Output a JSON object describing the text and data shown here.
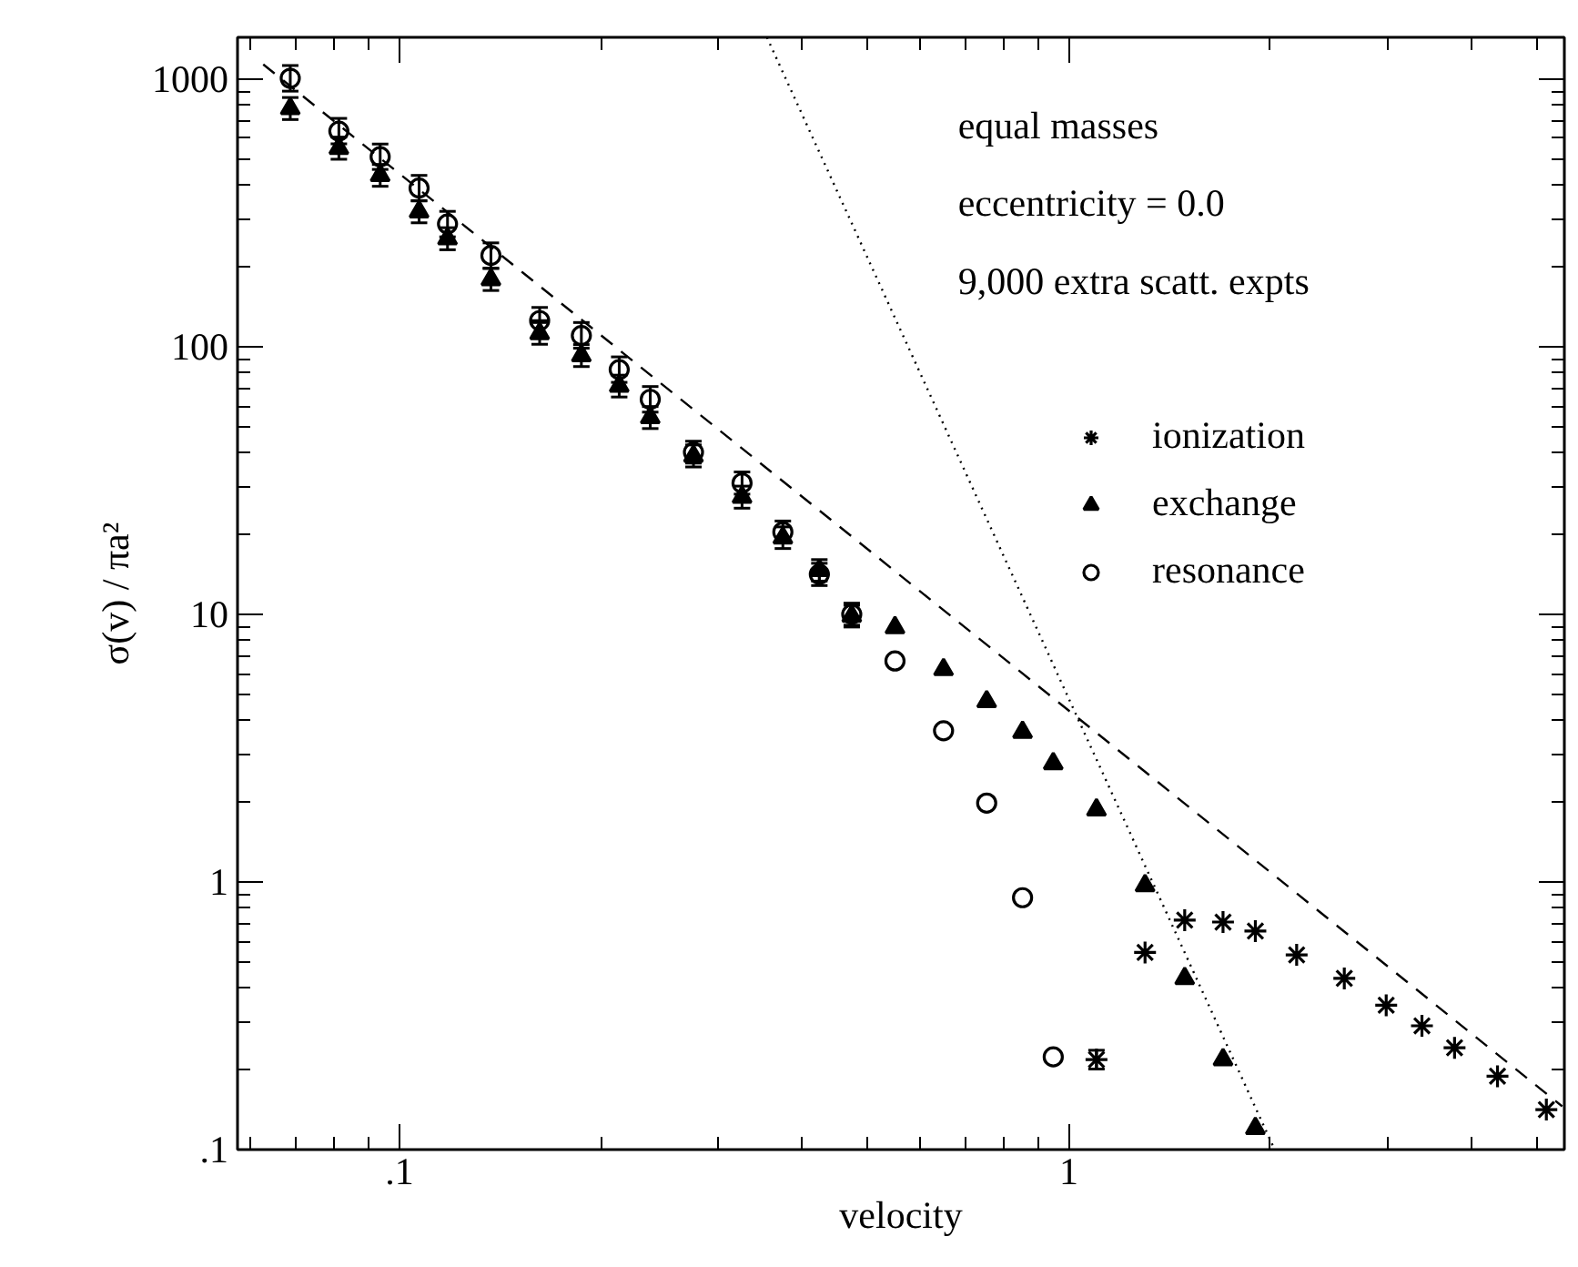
{
  "chart_data": {
    "type": "scatter",
    "xlabel": "velocity",
    "ylabel": "σ(v) / πa²",
    "log": "xy",
    "grid": false,
    "legend": "top right",
    "xlim": [
      0.0573,
      5.5
    ],
    "ylim": [
      0.1,
      1430
    ],
    "xticks": [
      {
        "value": 0.06,
        "label": null
      },
      {
        "value": 0.07,
        "label": null
      },
      {
        "value": 0.08,
        "label": null
      },
      {
        "value": 0.09,
        "label": null
      },
      {
        "value": 0.1,
        "label": ".1"
      },
      {
        "value": 0.2,
        "label": null
      },
      {
        "value": 0.3,
        "label": null
      },
      {
        "value": 0.4,
        "label": null
      },
      {
        "value": 0.5,
        "label": null
      },
      {
        "value": 0.6,
        "label": null
      },
      {
        "value": 0.7,
        "label": null
      },
      {
        "value": 0.8,
        "label": null
      },
      {
        "value": 0.9,
        "label": null
      },
      1,
      {
        "value": 2,
        "label": null
      },
      {
        "value": 3,
        "label": null
      },
      {
        "value": 4,
        "label": null
      },
      {
        "value": 5,
        "label": null
      }
    ],
    "yticks": [
      {
        "value": 0.1,
        "label": ".1"
      },
      {
        "value": 0.2,
        "label": null
      },
      {
        "value": 0.3,
        "label": null
      },
      {
        "value": 0.4,
        "label": null
      },
      {
        "value": 0.5,
        "label": null
      },
      {
        "value": 0.6,
        "label": null
      },
      {
        "value": 0.7,
        "label": null
      },
      {
        "value": 0.8,
        "label": null
      },
      {
        "value": 0.9,
        "label": null
      },
      1,
      {
        "value": 2,
        "label": null
      },
      {
        "value": 3,
        "label": null
      },
      {
        "value": 4,
        "label": null
      },
      {
        "value": 5,
        "label": null
      },
      {
        "value": 6,
        "label": null
      },
      {
        "value": 7,
        "label": null
      },
      {
        "value": 8,
        "label": null
      },
      {
        "value": 9,
        "label": null
      },
      10,
      {
        "value": 20,
        "label": null
      },
      {
        "value": 30,
        "label": null
      },
      {
        "value": 40,
        "label": null
      },
      {
        "value": 50,
        "label": null
      },
      {
        "value": 60,
        "label": null
      },
      {
        "value": 70,
        "label": null
      },
      {
        "value": 80,
        "label": null
      },
      {
        "value": 90,
        "label": null
      },
      100,
      {
        "value": 200,
        "label": null
      },
      {
        "value": 300,
        "label": null
      },
      {
        "value": 400,
        "label": null
      },
      {
        "value": 500,
        "label": null
      },
      {
        "value": 600,
        "label": null
      },
      {
        "value": 700,
        "label": null
      },
      {
        "value": 800,
        "label": null
      },
      {
        "value": 900,
        "label": null
      },
      1000
    ],
    "annotations": [
      "equal masses",
      "eccentricity = 0.0",
      "9,000 extra scatt. expts"
    ],
    "series": [
      {
        "name": "ionization",
        "marker": "cross",
        "color": "#000000",
        "x": [
          1.1,
          1.3,
          1.49,
          1.7,
          1.9,
          2.19,
          2.58,
          2.98,
          3.37,
          3.77,
          4.37,
          5.17
        ],
        "values": [
          0.217,
          0.545,
          0.72,
          0.708,
          0.655,
          0.534,
          0.436,
          0.346,
          0.29,
          0.24,
          0.188,
          0.141
        ],
        "errors": [
          [
            0.2,
            0.235
          ],
          null,
          null,
          null,
          null,
          null,
          null,
          null,
          null,
          null,
          null,
          null
        ]
      },
      {
        "name": "exchange",
        "marker": "triangle",
        "color": "#000000",
        "x": [
          0.0687,
          0.0812,
          0.0936,
          0.107,
          0.118,
          0.137,
          0.162,
          0.187,
          0.213,
          0.237,
          0.275,
          0.325,
          0.374,
          0.424,
          0.474,
          0.55,
          0.65,
          0.754,
          0.853,
          0.948,
          1.1,
          1.3,
          1.49,
          1.7,
          1.9
        ],
        "values": [
          775,
          551,
          436,
          319,
          253,
          178,
          112,
          92.5,
          71.2,
          54.3,
          39,
          27.4,
          19.3,
          14.6,
          9.85,
          8.92,
          6.22,
          4.72,
          3.63,
          2.77,
          1.86,
          0.969,
          0.436,
          0.217,
          0.12
        ],
        "errors": [
          [
            705,
            852
          ],
          [
            501,
            606
          ],
          [
            397,
            479
          ],
          [
            290,
            351
          ],
          [
            230,
            278
          ],
          [
            162,
            196
          ],
          [
            102,
            123
          ],
          [
            84.2,
            101.7
          ],
          [
            64.8,
            78.2
          ],
          [
            49.4,
            59.7
          ],
          [
            35.5,
            42.9
          ],
          [
            24.9,
            30.1
          ],
          [
            17.6,
            21.2
          ],
          [
            13.3,
            16.0
          ],
          [
            8.96,
            10.8
          ],
          null,
          null,
          null,
          null,
          null,
          null,
          null,
          null,
          null,
          null
        ]
      },
      {
        "name": "resonance",
        "marker": "circle",
        "color": "#000000",
        "x": [
          0.0687,
          0.0812,
          0.0936,
          0.107,
          0.118,
          0.137,
          0.162,
          0.187,
          0.213,
          0.237,
          0.275,
          0.325,
          0.374,
          0.424,
          0.474,
          0.55,
          0.65,
          0.754,
          0.853,
          0.948
        ],
        "values": [
          1005,
          638,
          512,
          391,
          287,
          219,
          125,
          110,
          82,
          63.5,
          40.3,
          30.9,
          20.3,
          14.1,
          10.0,
          6.69,
          3.67,
          1.97,
          0.873,
          0.222
        ],
        "errors": [
          [
            900,
            1122
          ],
          [
            572,
            712
          ],
          [
            459,
            571
          ],
          [
            350,
            436
          ],
          [
            257,
            320
          ],
          [
            196,
            244
          ],
          [
            125,
            140
          ],
          [
            98.6,
            123
          ],
          [
            73.5,
            91.5
          ],
          [
            56.9,
            70.9
          ],
          [
            36.7,
            44.3
          ],
          [
            28.1,
            34.0
          ],
          [
            18.5,
            22.3
          ],
          [
            12.8,
            15.5
          ],
          [
            9.1,
            11.0
          ],
          null,
          null,
          null,
          null,
          null
        ]
      },
      {
        "type": "line",
        "line_style": "dashed",
        "color": "#000000",
        "x": [
          0.0626,
          5.46
        ],
        "values": [
          1133,
          0.145
        ]
      },
      {
        "type": "line",
        "line_style": "dotted",
        "color": "#000000",
        "x": [
          0.354,
          2.03
        ],
        "values": [
          1430,
          0.1
        ]
      }
    ]
  }
}
